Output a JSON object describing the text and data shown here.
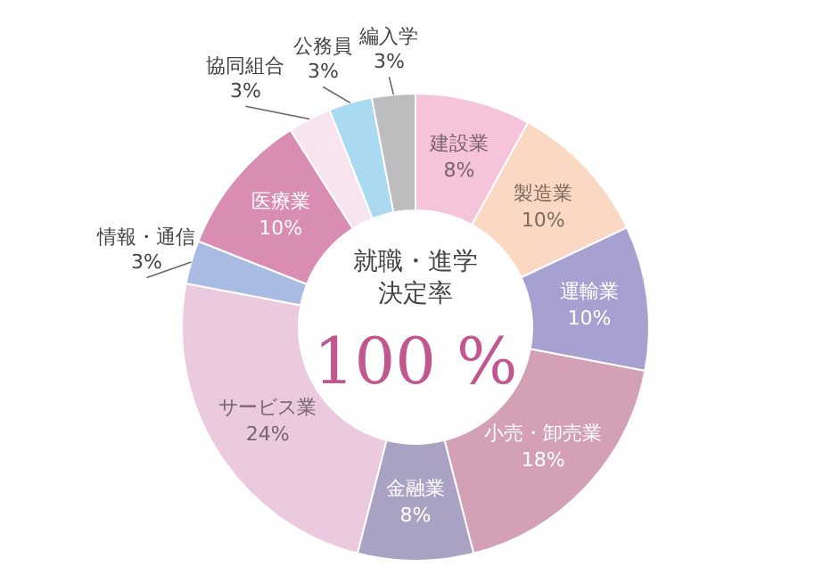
{
  "chart_data": {
    "type": "donut",
    "title": "就職・進学決定率",
    "annotations": [
      "100 %"
    ],
    "categories": [
      "建設業",
      "製造業",
      "運輸業",
      "小売・卸売業",
      "金融業",
      "サービス業",
      "情報・通信",
      "医療業",
      "協同組合",
      "公務員",
      "編入学"
    ],
    "values": [
      8,
      10,
      10,
      18,
      8,
      24,
      3,
      10,
      3,
      3,
      3
    ],
    "value_labels": [
      "8%",
      "10%",
      "10%",
      "18%",
      "8%",
      "24%",
      "3%",
      "10%",
      "3%",
      "3%",
      "3%"
    ],
    "colors": [
      "#f6c4da",
      "#fbd8c3",
      "#a7a1d2",
      "#d3a0b6",
      "#aaa2c3",
      "#ebcae0",
      "#a9bbe2",
      "#d98db2",
      "#f6e4ef",
      "#a9daf2",
      "#bdbcbe"
    ],
    "legend": false
  }
}
